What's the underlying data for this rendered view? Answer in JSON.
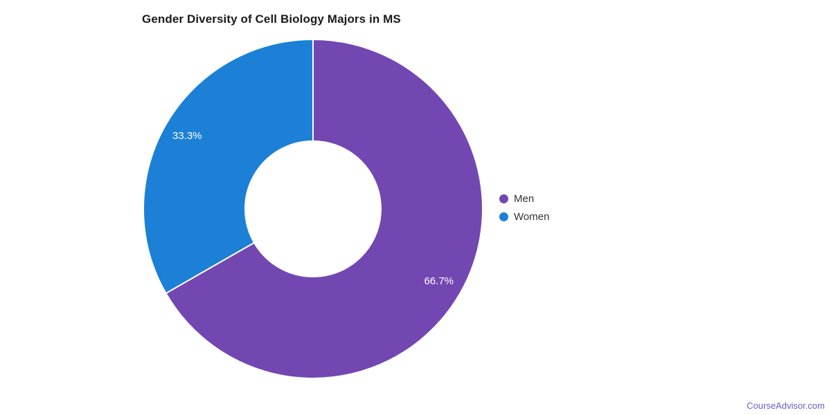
{
  "chart_data": {
    "type": "pie",
    "subtype": "donut",
    "title": "Gender Diversity of Cell Biology Majors in MS",
    "series": [
      {
        "name": "Men",
        "value": 66.7,
        "label": "66.7%",
        "color": "#7347b2"
      },
      {
        "name": "Women",
        "value": 33.3,
        "label": "33.3%",
        "color": "#1b80d6"
      }
    ],
    "start_angle_deg": 0,
    "direction": "clockwise",
    "inner_radius_ratio": 0.4,
    "slice_label_color": "#ffffff",
    "legend_position": "right",
    "grid": false
  },
  "watermark": {
    "text": "CourseAdvisor.com",
    "color": "#6a5bc7"
  }
}
